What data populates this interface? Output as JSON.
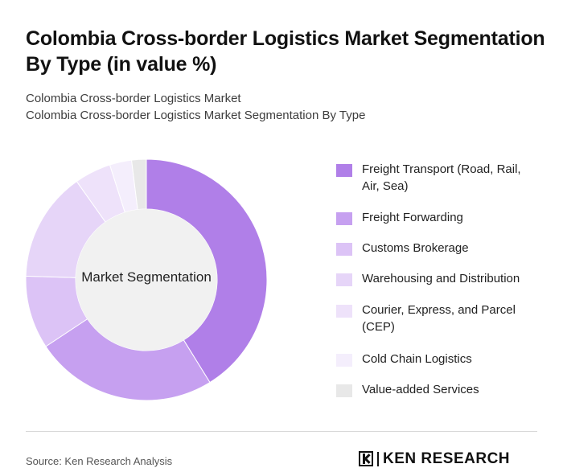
{
  "title": "Colombia Cross-border Logistics Market Segmentation By Type (in value %)",
  "subtitle_line1": "Colombia Cross-border Logistics Market",
  "subtitle_line2": "Colombia Cross-border Logistics Market Segmentation By Type",
  "chart_data": {
    "type": "pie",
    "variant": "donut",
    "center_label": "Market Segmentation",
    "legend_position": "right",
    "categories": [
      "Freight Transport (Road, Rail, Air, Sea)",
      "Freight Forwarding",
      "Customs Brokerage",
      "Warehousing and Distribution",
      "Courier, Express, and Parcel (CEP)",
      "Cold Chain Logistics",
      "Value-added Services"
    ],
    "values": [
      42,
      25,
      10,
      15,
      5,
      3,
      2
    ],
    "colors": [
      "#b07fe8",
      "#c6a0f0",
      "#dcc3f6",
      "#e6d5f8",
      "#eee2fa",
      "#f4eefc",
      "#e8e8e8"
    ]
  },
  "footer": {
    "source": "Source: Ken Research Analysis",
    "brand": "KEN RESEARCH"
  }
}
